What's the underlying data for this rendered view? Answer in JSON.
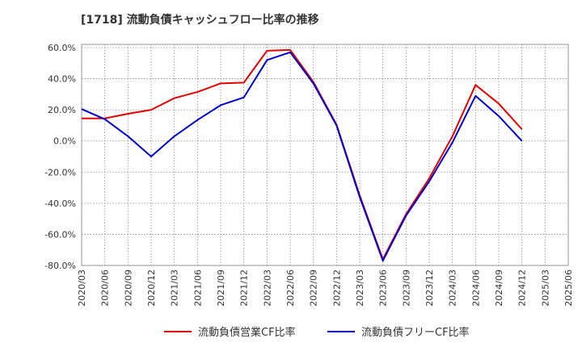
{
  "chart_data": {
    "type": "line",
    "title": "[1718]  流動負債キャッシュフロー比率の推移",
    "xlabel": "",
    "ylabel": "",
    "ylim": [
      -80,
      60
    ],
    "yticks": [
      60,
      40,
      20,
      0,
      -20,
      -40,
      -60,
      -80
    ],
    "ytick_labels": [
      "60.0%",
      "40.0%",
      "20.0%",
      "0.0%",
      "-20.0%",
      "-40.0%",
      "-60.0%",
      "-80.0%"
    ],
    "x": [
      "2020/03",
      "2020/06",
      "2020/09",
      "2020/12",
      "2021/03",
      "2021/06",
      "2021/09",
      "2021/12",
      "2022/03",
      "2022/06",
      "2022/09",
      "2022/12",
      "2023/03",
      "2023/06",
      "2023/09",
      "2023/12",
      "2024/03",
      "2024/06",
      "2024/09",
      "2024/12",
      "2025/03",
      "2025/06"
    ],
    "grid": true,
    "legend_position": "bottom",
    "series": [
      {
        "name": "流動負債営業CF比率",
        "color": "#e00000",
        "points": [
          {
            "x": "2020/03",
            "y": 14.5
          },
          {
            "x": "2020/06",
            "y": 14.5
          },
          {
            "x": "2020/09",
            "y": 17.5
          },
          {
            "x": "2020/12",
            "y": 20.0
          },
          {
            "x": "2021/03",
            "y": 27.5
          },
          {
            "x": "2021/06",
            "y": 31.5
          },
          {
            "x": "2021/09",
            "y": 37.0
          },
          {
            "x": "2021/12",
            "y": 37.5
          },
          {
            "x": "2022/03",
            "y": 58.0
          },
          {
            "x": "2022/06",
            "y": 58.5
          },
          {
            "x": "2022/09",
            "y": 38.0
          },
          {
            "x": "2022/12",
            "y": 10.5
          },
          {
            "x": "2023/03",
            "y": -35.0
          },
          {
            "x": "2023/06",
            "y": -76.0
          },
          {
            "x": "2023/09",
            "y": -47.0
          },
          {
            "x": "2023/12",
            "y": -24.0
          },
          {
            "x": "2024/03",
            "y": 3.0
          },
          {
            "x": "2024/06",
            "y": 36.0
          },
          {
            "x": "2024/09",
            "y": 24.0
          },
          {
            "x": "2024/12",
            "y": 7.5
          }
        ]
      },
      {
        "name": "流動負債フリーCF比率",
        "color": "#0000cc",
        "points": [
          {
            "x": "2020/03",
            "y": 20.5
          },
          {
            "x": "2020/06",
            "y": 14.0
          },
          {
            "x": "2020/09",
            "y": 3.0
          },
          {
            "x": "2020/12",
            "y": -10.0
          },
          {
            "x": "2021/03",
            "y": 3.0
          },
          {
            "x": "2021/06",
            "y": 13.5
          },
          {
            "x": "2021/09",
            "y": 23.0
          },
          {
            "x": "2021/12",
            "y": 28.0
          },
          {
            "x": "2022/03",
            "y": 52.0
          },
          {
            "x": "2022/06",
            "y": 57.0
          },
          {
            "x": "2022/09",
            "y": 37.0
          },
          {
            "x": "2022/12",
            "y": 10.0
          },
          {
            "x": "2023/03",
            "y": -36.0
          },
          {
            "x": "2023/06",
            "y": -77.0
          },
          {
            "x": "2023/09",
            "y": -48.0
          },
          {
            "x": "2023/12",
            "y": -26.0
          },
          {
            "x": "2024/03",
            "y": -1.0
          },
          {
            "x": "2024/06",
            "y": 29.0
          },
          {
            "x": "2024/09",
            "y": 16.0
          },
          {
            "x": "2024/12",
            "y": 0.0
          }
        ]
      }
    ]
  }
}
